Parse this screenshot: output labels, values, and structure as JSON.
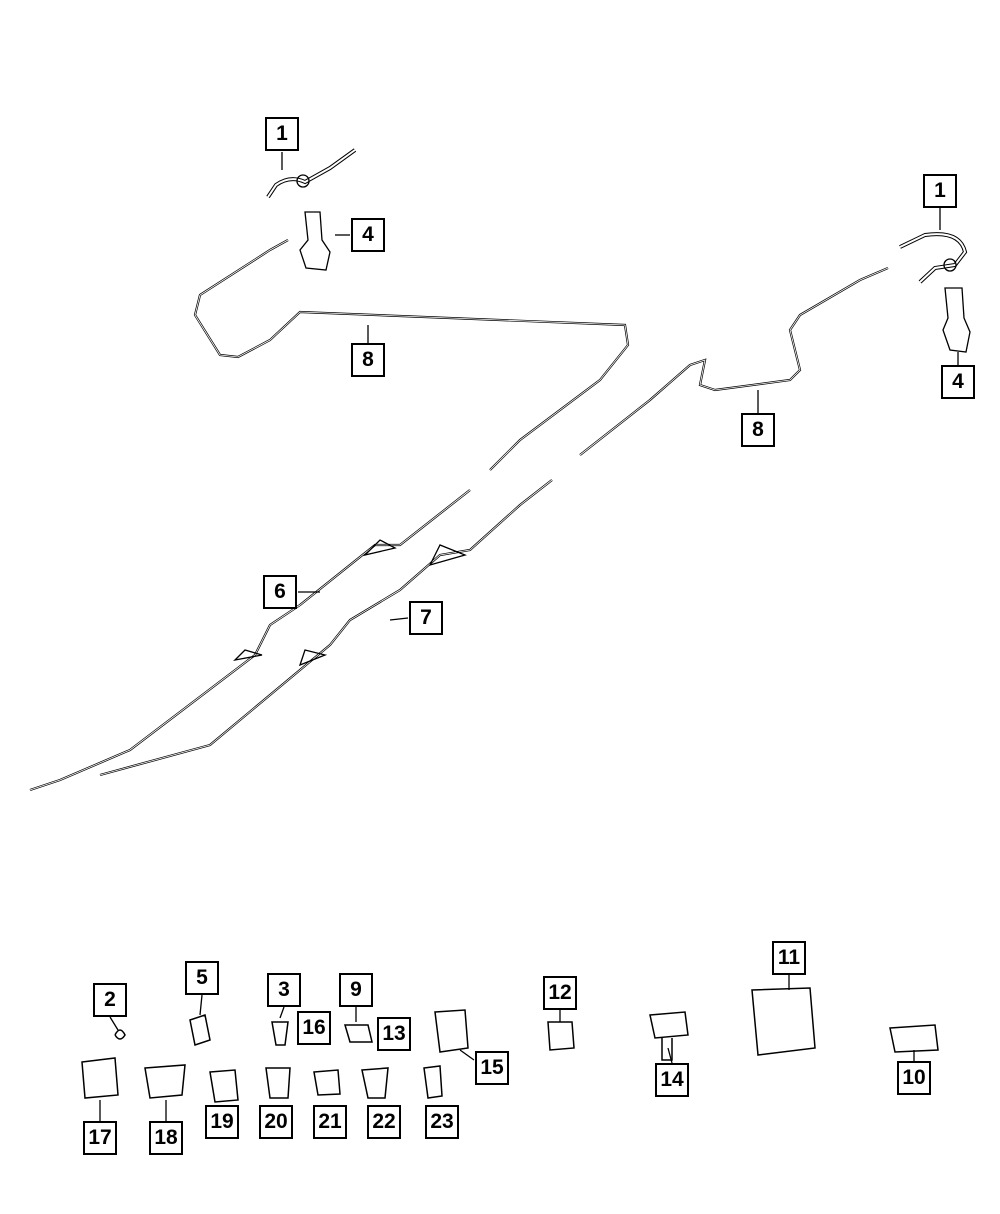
{
  "diagram": {
    "line_color": "#000000",
    "callouts": [
      "1",
      "4",
      "8",
      "1",
      "4",
      "8",
      "6",
      "7",
      "2",
      "5",
      "3",
      "16",
      "9",
      "13",
      "15",
      "12",
      "11",
      "14",
      "10",
      "17",
      "18",
      "19",
      "20",
      "21",
      "22",
      "23"
    ]
  }
}
